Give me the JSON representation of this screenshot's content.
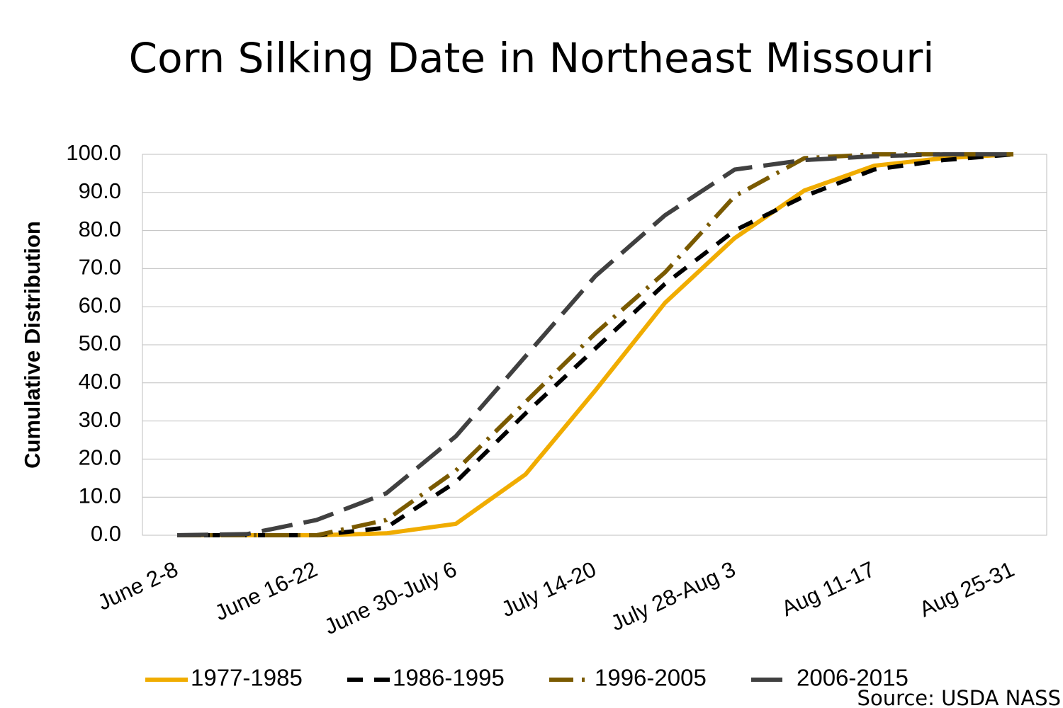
{
  "chart_data": {
    "type": "line",
    "title": "Corn Silking Date in Northeast Missouri",
    "y_label": "Cumulative Distribution",
    "source": "Source: USDA NASS",
    "categories": [
      "June 2-8",
      null,
      "June 16-22",
      null,
      "June 30-July 6",
      null,
      "July 14-20",
      null,
      "July 28-Aug 3",
      null,
      "Aug 11-17",
      null,
      "Aug 25-31"
    ],
    "series": [
      {
        "name": "1977-1985",
        "color": "#f0ac00",
        "dash": "solid",
        "values": [
          0,
          0,
          0,
          0.5,
          3,
          16,
          38,
          61,
          78,
          90.5,
          97,
          99,
          100
        ]
      },
      {
        "name": "1986-1995",
        "color": "#000000",
        "dash": "dashed",
        "values": [
          0,
          0,
          0,
          2,
          14,
          32,
          49,
          66,
          80,
          89,
          96,
          98.5,
          100
        ]
      },
      {
        "name": "1996-2005",
        "color": "#7a5a00",
        "dash": "dashdot",
        "values": [
          0,
          0,
          0,
          4,
          17,
          35,
          53,
          69,
          89,
          99,
          100,
          100,
          100
        ]
      },
      {
        "name": "2006-2015",
        "color": "#404040",
        "dash": "longdash",
        "values": [
          0,
          0.3,
          4,
          11,
          26,
          47,
          68,
          84,
          96,
          98.5,
          99.5,
          100,
          100
        ]
      }
    ],
    "ylim": [
      0,
      100
    ],
    "yticks": [
      {
        "value": 0,
        "label": "0.0"
      },
      {
        "value": 10,
        "label": "10.0"
      },
      {
        "value": 20,
        "label": "20.0"
      },
      {
        "value": 30,
        "label": "30.0"
      },
      {
        "value": 40,
        "label": "40.0"
      },
      {
        "value": 50,
        "label": "50.0"
      },
      {
        "value": 60,
        "label": "60.0"
      },
      {
        "value": 70,
        "label": "70.0"
      },
      {
        "value": 80,
        "label": "80.0"
      },
      {
        "value": 90,
        "label": "90.0"
      },
      {
        "value": 100,
        "label": "100.0"
      }
    ],
    "grid": true,
    "legend": "bottom"
  }
}
